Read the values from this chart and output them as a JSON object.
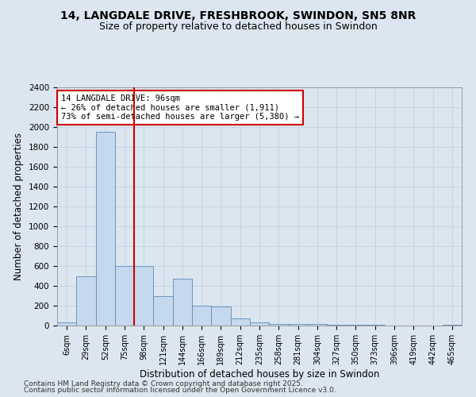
{
  "title1": "14, LANGDALE DRIVE, FRESHBROOK, SWINDON, SN5 8NR",
  "title2": "Size of property relative to detached houses in Swindon",
  "xlabel": "Distribution of detached houses by size in Swindon",
  "ylabel": "Number of detached properties",
  "categories": [
    "6sqm",
    "29sqm",
    "52sqm",
    "75sqm",
    "98sqm",
    "121sqm",
    "144sqm",
    "166sqm",
    "189sqm",
    "212sqm",
    "235sqm",
    "258sqm",
    "281sqm",
    "304sqm",
    "327sqm",
    "350sqm",
    "373sqm",
    "396sqm",
    "419sqm",
    "442sqm",
    "465sqm"
  ],
  "values": [
    30,
    500,
    1950,
    600,
    600,
    300,
    470,
    200,
    195,
    70,
    30,
    20,
    20,
    15,
    10,
    8,
    5,
    3,
    2,
    1,
    10
  ],
  "bar_color": "#c5d8ed",
  "bar_edge_color": "#5b8db8",
  "red_line_x": 3.5,
  "red_line_color": "#cc0000",
  "annotation_text": "14 LANGDALE DRIVE: 96sqm\n← 26% of detached houses are smaller (1,911)\n73% of semi-detached houses are larger (5,380) →",
  "annotation_box_color": "#ffffff",
  "annotation_border_color": "#cc0000",
  "ylim": [
    0,
    2400
  ],
  "yticks": [
    0,
    200,
    400,
    600,
    800,
    1000,
    1200,
    1400,
    1600,
    1800,
    2000,
    2200,
    2400
  ],
  "grid_color": "#c8d4e3",
  "background_color": "#dce6f0",
  "fig_background": "#dce6f0",
  "footer1": "Contains HM Land Registry data © Crown copyright and database right 2025.",
  "footer2": "Contains public sector information licensed under the Open Government Licence v3.0."
}
